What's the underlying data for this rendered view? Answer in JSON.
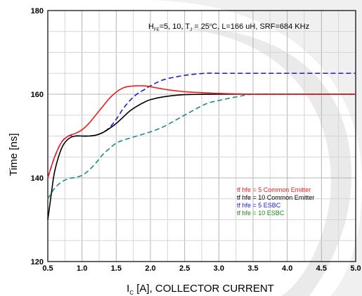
{
  "chart_data": {
    "type": "line",
    "annotation": {
      "h": "H",
      "fe": "FE",
      "text1": "=5, 10, T",
      "j": "J",
      "text2": " = 25",
      "deg": "o",
      "text3": "C, L=166 uH, SRF=684 KHz"
    },
    "xlabel": {
      "i": "I",
      "sub": "C",
      "rest": " [A], COLLECTOR CURRENT"
    },
    "ylabel": "Time [ns]",
    "xlim": [
      0.5,
      5.0
    ],
    "ylim": [
      120,
      180
    ],
    "x_ticks": [
      "0.5",
      "1.0",
      "1.5",
      "2.0",
      "2.5",
      "3.0",
      "3.5",
      "4.0",
      "4.5",
      "5.0"
    ],
    "y_ticks": [
      "120",
      "140",
      "160",
      "180"
    ],
    "grid": true,
    "legend_position": "bottom-right",
    "series": [
      {
        "name": "tf hfe = 5 Common Emitter",
        "color": "#ee1c1c",
        "dash": "solid",
        "x": [
          0.5,
          0.6,
          0.7,
          0.8,
          0.9,
          1.0,
          1.1,
          1.2,
          1.3,
          1.4,
          1.5,
          1.6,
          1.7,
          1.8,
          1.9,
          2.0,
          2.2,
          2.5,
          3.0,
          3.5,
          4.0,
          5.0
        ],
        "y": [
          140,
          145,
          148.5,
          150,
          150.6,
          151.5,
          153,
          155,
          157,
          159,
          160.5,
          161.5,
          161.9,
          162,
          162,
          161.8,
          161.2,
          160.6,
          160.2,
          160,
          160,
          160
        ]
      },
      {
        "name": "tf hfe = 10 Common Emitter",
        "color": "#000000",
        "dash": "solid",
        "x": [
          0.5,
          0.55,
          0.6,
          0.7,
          0.8,
          0.9,
          1.0,
          1.1,
          1.2,
          1.3,
          1.4,
          1.5,
          1.6,
          1.7,
          1.8,
          1.9,
          2.0,
          2.2,
          2.5,
          3.0,
          3.5,
          4.0,
          5.0
        ],
        "y": [
          130,
          136,
          141.5,
          147,
          149.3,
          150,
          150,
          150,
          150.2,
          150.8,
          151.8,
          153,
          154.5,
          156,
          157.1,
          158,
          158.7,
          159.4,
          159.9,
          160,
          160,
          160,
          160
        ]
      },
      {
        "name": "tf hfe = 5 ESBC",
        "color": "#1c1cd6",
        "dash": "7 4",
        "x": [
          0.5,
          0.6,
          0.7,
          0.8,
          0.9,
          1.0,
          1.1,
          1.2,
          1.3,
          1.4,
          1.5,
          1.6,
          1.7,
          1.8,
          1.9,
          2.0,
          2.2,
          2.5,
          2.8,
          3.0,
          3.5,
          4.0,
          5.0
        ],
        "y": [
          140,
          145,
          148.5,
          150,
          150,
          150,
          150,
          150.2,
          150.8,
          152,
          154,
          156.5,
          158.5,
          160,
          161,
          162,
          163.5,
          164.5,
          165,
          165,
          165,
          165,
          165
        ]
      },
      {
        "name": "tf hfe = 10 ESBC",
        "color": "#1a8a8a",
        "dash": "7 4",
        "x": [
          0.5,
          0.6,
          0.7,
          0.8,
          0.9,
          1.0,
          1.1,
          1.2,
          1.3,
          1.4,
          1.5,
          1.6,
          1.8,
          2.0,
          2.2,
          2.5,
          2.8,
          3.0,
          3.3,
          3.5,
          4.0,
          5.0
        ],
        "y": [
          135,
          137.5,
          139,
          139.8,
          140.1,
          140.6,
          141.8,
          143.5,
          145.5,
          147,
          148.3,
          149,
          150,
          151,
          152.3,
          155,
          157.6,
          158.5,
          159.5,
          160,
          160,
          160
        ]
      }
    ],
    "legend_colors": [
      "#ee1c1c",
      "#000000",
      "#1c1cd6",
      "#1a8a1a"
    ]
  }
}
